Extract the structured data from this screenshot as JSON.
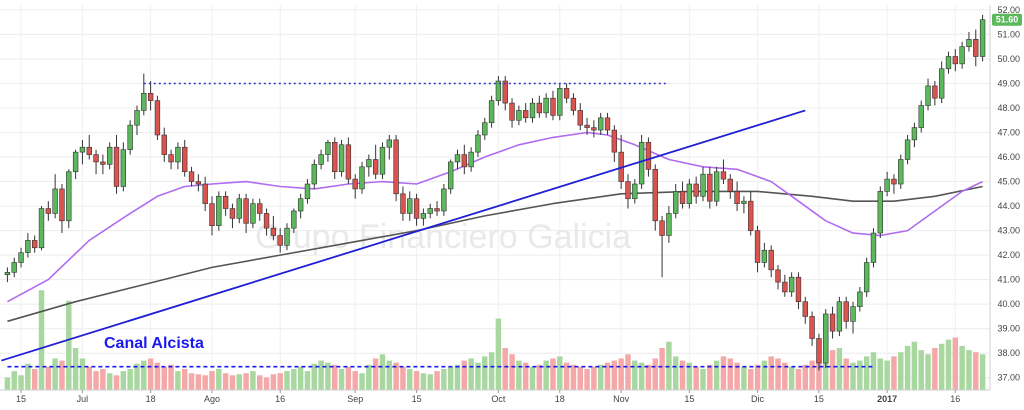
{
  "chart_data": {
    "type": "candlestick",
    "watermark": "Grupo Financiero Galicia",
    "annotation": "Canal Alcista",
    "last_price": "51.60",
    "colors": {
      "up": "#5cb85c",
      "down": "#d9534f",
      "up_volume": "#a8d8a0",
      "down_volume": "#f4a8a8",
      "ma_short": "#b06cf0",
      "ma_long": "#555555",
      "trendline": "#1f1fd6",
      "resistance": "#3333cc",
      "support": "#1a1aee",
      "last_price_badge": "#5cb85c"
    },
    "y_axis": {
      "min": 36.5,
      "max": 52.2,
      "ticks": [
        "37.00",
        "38.00",
        "39.00",
        "40.00",
        "41.00",
        "42.00",
        "43.00",
        "44.00",
        "45.00",
        "46.00",
        "47.00",
        "48.00",
        "49.00",
        "50.00",
        "51.00",
        "52.00"
      ]
    },
    "x_axis": {
      "labels": [
        {
          "i": 2,
          "text": "15"
        },
        {
          "i": 11,
          "text": "Jul"
        },
        {
          "i": 21,
          "text": "18"
        },
        {
          "i": 30,
          "text": "Ago"
        },
        {
          "i": 40,
          "text": "16"
        },
        {
          "i": 51,
          "text": "Sep"
        },
        {
          "i": 60,
          "text": "15"
        },
        {
          "i": 72,
          "text": "Oct"
        },
        {
          "i": 81,
          "text": "18"
        },
        {
          "i": 90,
          "text": "Nov"
        },
        {
          "i": 100,
          "text": "15"
        },
        {
          "i": 110,
          "text": "Dic"
        },
        {
          "i": 119,
          "text": "15"
        },
        {
          "i": 129,
          "text": "2017"
        },
        {
          "i": 139,
          "text": "16"
        }
      ]
    },
    "candles": [
      [
        41.2,
        41.5,
        40.9,
        41.3
      ],
      [
        41.3,
        41.9,
        41.1,
        41.7
      ],
      [
        41.7,
        42.3,
        41.5,
        42.1
      ],
      [
        42.1,
        42.9,
        41.9,
        42.6
      ],
      [
        42.6,
        42.8,
        42.1,
        42.3
      ],
      [
        42.3,
        44.0,
        42.2,
        43.9
      ],
      [
        43.9,
        44.2,
        43.4,
        43.7
      ],
      [
        43.7,
        45.3,
        43.5,
        44.7
      ],
      [
        44.7,
        44.9,
        42.9,
        43.4
      ],
      [
        43.4,
        45.5,
        43.1,
        45.4
      ],
      [
        45.4,
        46.3,
        45.1,
        46.2
      ],
      [
        46.2,
        46.7,
        45.7,
        46.4
      ],
      [
        46.4,
        46.9,
        45.9,
        46.1
      ],
      [
        46.1,
        46.3,
        45.3,
        45.8
      ],
      [
        45.8,
        46.1,
        45.3,
        45.7
      ],
      [
        45.7,
        46.6,
        45.5,
        46.4
      ],
      [
        46.4,
        46.9,
        44.5,
        44.8
      ],
      [
        44.8,
        46.6,
        44.6,
        46.3
      ],
      [
        46.3,
        47.5,
        46.1,
        47.3
      ],
      [
        47.3,
        48.1,
        46.9,
        47.9
      ],
      [
        47.9,
        49.4,
        47.7,
        48.6
      ],
      [
        48.6,
        49.1,
        47.9,
        48.3
      ],
      [
        48.3,
        48.5,
        46.7,
        46.9
      ],
      [
        46.9,
        47.2,
        45.8,
        46.1
      ],
      [
        46.1,
        46.3,
        45.5,
        45.8
      ],
      [
        45.8,
        46.6,
        45.5,
        46.4
      ],
      [
        46.4,
        46.7,
        45.2,
        45.4
      ],
      [
        45.4,
        45.6,
        44.8,
        45.0
      ],
      [
        45.0,
        45.3,
        44.6,
        44.9
      ],
      [
        44.9,
        45.2,
        43.8,
        44.1
      ],
      [
        44.1,
        44.4,
        42.8,
        43.2
      ],
      [
        43.2,
        44.6,
        43.0,
        44.4
      ],
      [
        44.4,
        44.6,
        43.6,
        43.9
      ],
      [
        43.9,
        44.1,
        43.1,
        43.5
      ],
      [
        43.5,
        44.5,
        43.3,
        44.3
      ],
      [
        44.3,
        44.5,
        42.9,
        43.3
      ],
      [
        43.3,
        44.3,
        43.1,
        44.1
      ],
      [
        44.1,
        44.3,
        43.4,
        43.7
      ],
      [
        43.7,
        43.9,
        42.8,
        43.1
      ],
      [
        43.1,
        43.6,
        42.6,
        42.8
      ],
      [
        42.8,
        43.1,
        42.1,
        42.4
      ],
      [
        42.4,
        43.3,
        42.2,
        43.1
      ],
      [
        43.1,
        43.9,
        42.9,
        43.8
      ],
      [
        43.8,
        44.5,
        43.5,
        44.3
      ],
      [
        44.3,
        45.1,
        44.1,
        44.9
      ],
      [
        44.9,
        45.9,
        44.7,
        45.7
      ],
      [
        45.7,
        46.3,
        45.5,
        46.1
      ],
      [
        46.1,
        46.7,
        45.8,
        46.6
      ],
      [
        46.6,
        46.8,
        45.1,
        45.4
      ],
      [
        45.4,
        46.7,
        45.2,
        46.5
      ],
      [
        46.5,
        46.8,
        44.9,
        45.1
      ],
      [
        45.1,
        45.3,
        44.3,
        44.7
      ],
      [
        44.7,
        45.8,
        44.5,
        45.6
      ],
      [
        45.6,
        46.1,
        45.2,
        45.9
      ],
      [
        45.9,
        46.5,
        45.1,
        45.3
      ],
      [
        45.3,
        46.6,
        45.1,
        46.4
      ],
      [
        46.4,
        46.9,
        45.9,
        46.7
      ],
      [
        46.7,
        46.9,
        44.2,
        44.5
      ],
      [
        44.5,
        44.8,
        43.4,
        43.7
      ],
      [
        43.7,
        44.6,
        43.4,
        44.3
      ],
      [
        44.3,
        44.5,
        43.2,
        43.5
      ],
      [
        43.5,
        43.9,
        43.2,
        43.7
      ],
      [
        43.7,
        44.1,
        43.5,
        43.9
      ],
      [
        43.9,
        44.2,
        43.6,
        43.8
      ],
      [
        43.8,
        44.9,
        43.6,
        44.7
      ],
      [
        44.7,
        45.9,
        44.5,
        45.8
      ],
      [
        45.8,
        46.3,
        45.5,
        46.1
      ],
      [
        46.1,
        46.5,
        45.3,
        45.6
      ],
      [
        45.6,
        46.4,
        45.4,
        46.2
      ],
      [
        46.2,
        47.1,
        46.0,
        46.9
      ],
      [
        46.9,
        47.6,
        46.7,
        47.4
      ],
      [
        47.4,
        48.5,
        47.2,
        48.3
      ],
      [
        48.3,
        49.3,
        48.1,
        49.1
      ],
      [
        49.1,
        49.3,
        47.9,
        48.2
      ],
      [
        48.2,
        48.4,
        47.2,
        47.5
      ],
      [
        47.5,
        48.1,
        47.3,
        47.9
      ],
      [
        47.9,
        48.2,
        47.4,
        47.6
      ],
      [
        47.6,
        48.4,
        47.4,
        48.2
      ],
      [
        48.2,
        48.5,
        47.6,
        47.8
      ],
      [
        47.8,
        48.6,
        47.6,
        48.4
      ],
      [
        48.4,
        48.7,
        47.5,
        47.7
      ],
      [
        47.7,
        49.0,
        47.5,
        48.8
      ],
      [
        48.8,
        49.0,
        48.2,
        48.4
      ],
      [
        48.4,
        48.6,
        47.7,
        47.9
      ],
      [
        47.9,
        48.2,
        47.1,
        47.3
      ],
      [
        47.3,
        47.6,
        46.9,
        47.2
      ],
      [
        47.2,
        47.5,
        46.8,
        47.1
      ],
      [
        47.1,
        47.8,
        46.9,
        47.6
      ],
      [
        47.6,
        47.8,
        46.9,
        47.1
      ],
      [
        47.1,
        47.3,
        45.8,
        46.2
      ],
      [
        46.2,
        46.9,
        44.7,
        45.0
      ],
      [
        45.0,
        45.3,
        43.9,
        44.3
      ],
      [
        44.3,
        45.1,
        44.1,
        44.9
      ],
      [
        44.9,
        46.9,
        44.7,
        46.6
      ],
      [
        46.6,
        46.8,
        45.2,
        45.5
      ],
      [
        45.5,
        45.7,
        43.0,
        43.4
      ],
      [
        43.4,
        43.6,
        41.1,
        42.8
      ],
      [
        42.8,
        44.0,
        42.5,
        43.7
      ],
      [
        43.7,
        44.9,
        43.5,
        44.6
      ],
      [
        44.6,
        45.0,
        43.9,
        44.1
      ],
      [
        44.1,
        45.1,
        43.9,
        44.9
      ],
      [
        44.9,
        45.2,
        44.1,
        44.4
      ],
      [
        44.4,
        45.6,
        44.2,
        45.3
      ],
      [
        45.3,
        45.6,
        43.9,
        44.2
      ],
      [
        44.2,
        45.6,
        44.0,
        45.4
      ],
      [
        45.4,
        45.9,
        44.9,
        45.1
      ],
      [
        45.1,
        45.3,
        44.3,
        44.6
      ],
      [
        44.6,
        45.0,
        43.8,
        44.1
      ],
      [
        44.1,
        44.4,
        43.7,
        44.2
      ],
      [
        44.2,
        44.6,
        42.8,
        43.0
      ],
      [
        43.0,
        43.2,
        41.3,
        41.7
      ],
      [
        41.7,
        42.5,
        41.5,
        42.2
      ],
      [
        42.2,
        42.4,
        41.1,
        41.4
      ],
      [
        41.4,
        41.6,
        40.6,
        40.9
      ],
      [
        40.9,
        41.2,
        40.3,
        40.5
      ],
      [
        40.5,
        41.3,
        40.3,
        41.1
      ],
      [
        41.1,
        41.3,
        39.8,
        40.1
      ],
      [
        40.1,
        40.3,
        39.2,
        39.5
      ],
      [
        39.5,
        39.7,
        38.3,
        38.6
      ],
      [
        38.6,
        38.8,
        37.3,
        37.6
      ],
      [
        37.6,
        39.8,
        37.4,
        39.6
      ],
      [
        39.6,
        39.9,
        38.6,
        38.9
      ],
      [
        38.9,
        40.3,
        38.7,
        40.1
      ],
      [
        40.1,
        40.3,
        39.0,
        39.3
      ],
      [
        39.3,
        40.1,
        38.8,
        39.9
      ],
      [
        39.9,
        40.7,
        39.7,
        40.5
      ],
      [
        40.5,
        41.9,
        40.3,
        41.7
      ],
      [
        41.7,
        43.1,
        41.5,
        42.9
      ],
      [
        42.9,
        44.8,
        42.7,
        44.6
      ],
      [
        44.6,
        45.4,
        44.4,
        45.1
      ],
      [
        45.1,
        45.3,
        44.5,
        44.9
      ],
      [
        44.9,
        46.1,
        44.7,
        45.9
      ],
      [
        45.9,
        46.9,
        45.7,
        46.7
      ],
      [
        46.7,
        47.4,
        46.4,
        47.2
      ],
      [
        47.2,
        48.3,
        47.0,
        48.1
      ],
      [
        48.1,
        49.2,
        47.9,
        48.9
      ],
      [
        48.9,
        49.1,
        48.1,
        48.4
      ],
      [
        48.4,
        49.9,
        48.2,
        49.6
      ],
      [
        49.6,
        50.3,
        49.4,
        50.1
      ],
      [
        50.1,
        50.4,
        49.5,
        49.8
      ],
      [
        49.8,
        50.7,
        49.6,
        50.5
      ],
      [
        50.5,
        51.1,
        50.3,
        50.8
      ],
      [
        50.8,
        51.2,
        49.7,
        50.1
      ],
      [
        50.1,
        51.8,
        49.9,
        51.6
      ]
    ],
    "volume_scale": {
      "min": 0,
      "max": 100
    },
    "volume": [
      12,
      18,
      14,
      25,
      20,
      95,
      22,
      30,
      28,
      85,
      40,
      30,
      22,
      18,
      20,
      16,
      14,
      18,
      20,
      25,
      28,
      30,
      26,
      22,
      24,
      18,
      20,
      16,
      15,
      14,
      18,
      20,
      16,
      14,
      15,
      16,
      18,
      14,
      12,
      15,
      16,
      18,
      20,
      22,
      18,
      25,
      28,
      26,
      24,
      20,
      22,
      18,
      16,
      24,
      30,
      34,
      28,
      26,
      22,
      20,
      18,
      16,
      15,
      18,
      20,
      22,
      24,
      28,
      30,
      26,
      32,
      36,
      68,
      40,
      34,
      28,
      26,
      22,
      24,
      28,
      30,
      32,
      26,
      24,
      22,
      20,
      22,
      24,
      26,
      28,
      30,
      34,
      28,
      26,
      24,
      30,
      40,
      46,
      32,
      28,
      26,
      22,
      20,
      24,
      28,
      32,
      30,
      26,
      22,
      20,
      24,
      28,
      32,
      30,
      26,
      22,
      20,
      24,
      28,
      30,
      34,
      38,
      40,
      30,
      26,
      28,
      32,
      36,
      30,
      28,
      32,
      36,
      42,
      46,
      38,
      34,
      40,
      44,
      48,
      50,
      42,
      38,
      36,
      34
    ],
    "ma_short_line": [
      [
        0,
        40.1
      ],
      [
        6,
        41.0
      ],
      [
        12,
        42.6
      ],
      [
        18,
        43.7
      ],
      [
        22,
        44.4
      ],
      [
        26,
        44.8
      ],
      [
        30,
        44.9
      ],
      [
        35,
        45.0
      ],
      [
        40,
        44.8
      ],
      [
        45,
        44.7
      ],
      [
        50,
        44.9
      ],
      [
        55,
        45.0
      ],
      [
        60,
        44.9
      ],
      [
        65,
        45.4
      ],
      [
        70,
        46.0
      ],
      [
        75,
        46.5
      ],
      [
        80,
        46.8
      ],
      [
        85,
        47.0
      ],
      [
        88,
        46.9
      ],
      [
        92,
        46.5
      ],
      [
        97,
        45.9
      ],
      [
        102,
        45.6
      ],
      [
        107,
        45.5
      ],
      [
        112,
        45.0
      ],
      [
        116,
        44.2
      ],
      [
        120,
        43.4
      ],
      [
        124,
        42.9
      ],
      [
        128,
        42.8
      ],
      [
        132,
        43.0
      ],
      [
        136,
        43.8
      ],
      [
        140,
        44.6
      ],
      [
        143,
        45.0
      ]
    ],
    "ma_long_line": [
      [
        0,
        39.3
      ],
      [
        10,
        40.1
      ],
      [
        20,
        40.8
      ],
      [
        30,
        41.5
      ],
      [
        40,
        42.0
      ],
      [
        50,
        42.5
      ],
      [
        60,
        43.0
      ],
      [
        70,
        43.6
      ],
      [
        80,
        44.1
      ],
      [
        90,
        44.5
      ],
      [
        100,
        44.6
      ],
      [
        110,
        44.6
      ],
      [
        118,
        44.4
      ],
      [
        124,
        44.2
      ],
      [
        130,
        44.2
      ],
      [
        136,
        44.4
      ],
      [
        143,
        44.8
      ]
    ],
    "trendline": {
      "from": [
        0,
        37.7
      ],
      "to": [
        117,
        47.9
      ]
    },
    "resistance": {
      "from": [
        20,
        49.0
      ],
      "to": [
        97,
        49.0
      ]
    },
    "support": {
      "from": [
        0,
        37.45
      ],
      "to": [
        127,
        37.45
      ]
    }
  }
}
